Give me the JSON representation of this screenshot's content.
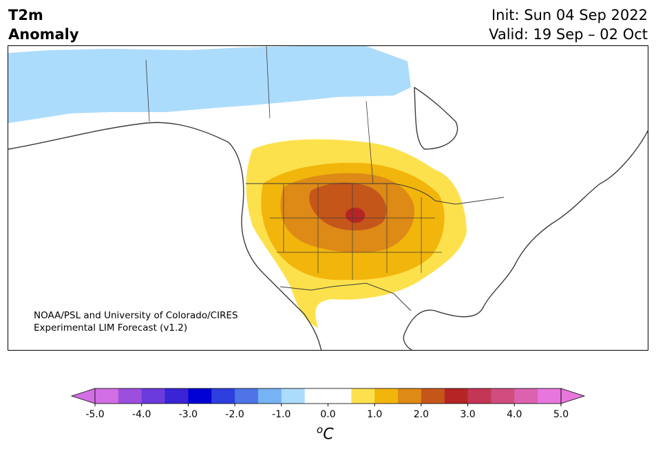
{
  "header": {
    "title_line1": "T2m",
    "title_line2": "Anomaly",
    "init": "Init: Sun 04 Sep 2022",
    "valid": "Valid: 19 Sep – 02 Oct"
  },
  "map": {
    "region": "North America",
    "credit_line1": "NOAA/PSL and University of Colorado/CIRES",
    "credit_line2": "Experimental LIM Forecast (v1.2)",
    "colors": {
      "cold_anomaly": "#acdcfb",
      "warm_1": "#fde14c",
      "warm_2": "#f2b50c",
      "warm_3": "#dd8a16",
      "warm_4": "#c5561a",
      "warm_5": "#b52526",
      "land": "#ffffff",
      "borders": "#3a3a3a"
    }
  },
  "colorbar": {
    "tick_labels": [
      "-5.0",
      "-4.0",
      "-3.0",
      "-2.0",
      "-1.0",
      "0.0",
      "1.0",
      "2.0",
      "3.0",
      "4.0",
      "5.0"
    ],
    "unit_sup": "o",
    "unit_base": "C",
    "colors": [
      "#d26fe4",
      "#9c4fdd",
      "#6b3bdb",
      "#3a24d6",
      "#0000d4",
      "#2d3fde",
      "#4e74e8",
      "#76b3f4",
      "#acdcfb",
      "#ffffff",
      "#ffffff",
      "#fde14c",
      "#f2b50c",
      "#dd8a16",
      "#c5561a",
      "#b52526",
      "#c43655",
      "#d04d7e",
      "#dc62af",
      "#e777dc"
    ]
  }
}
